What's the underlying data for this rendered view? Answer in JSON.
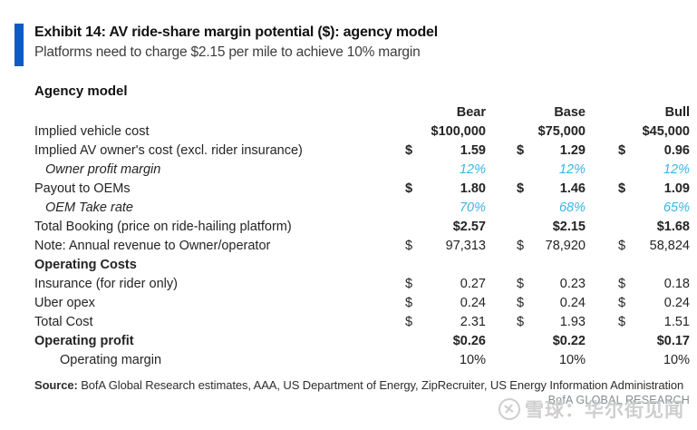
{
  "header": {
    "title": "Exhibit 14: AV ride-share margin potential ($): agency model",
    "subtitle": "Platforms need to charge $2.15 per mile to achieve 10% margin"
  },
  "table": {
    "section_title": "Agency model",
    "columns": [
      "Bear",
      "Base",
      "Bull"
    ],
    "rows": [
      {
        "label": "Implied vehicle cost",
        "value_style": "vbold",
        "cells": [
          {
            "sym": "",
            "val": "$100,000"
          },
          {
            "sym": "",
            "val": "$75,000"
          },
          {
            "sym": "",
            "val": "$45,000"
          }
        ]
      },
      {
        "label": "Implied AV owner's cost (excl. rider insurance)",
        "value_style": "vbold",
        "cells": [
          {
            "sym": "$",
            "val": "1.59"
          },
          {
            "sym": "$",
            "val": "1.29"
          },
          {
            "sym": "$",
            "val": "0.96"
          }
        ]
      },
      {
        "label": "Owner profit margin",
        "label_style": "italic",
        "indent": 1,
        "value_style": "vblue",
        "cells": [
          {
            "sym": "",
            "val": "12%"
          },
          {
            "sym": "",
            "val": "12%"
          },
          {
            "sym": "",
            "val": "12%"
          }
        ]
      },
      {
        "label": "Payout to OEMs",
        "value_style": "vbold",
        "cells": [
          {
            "sym": "$",
            "val": "1.80"
          },
          {
            "sym": "$",
            "val": "1.46"
          },
          {
            "sym": "$",
            "val": "1.09"
          }
        ]
      },
      {
        "label": "OEM Take rate",
        "label_style": "italic",
        "indent": 1,
        "value_style": "vblue",
        "cells": [
          {
            "sym": "",
            "val": "70%"
          },
          {
            "sym": "",
            "val": "68%"
          },
          {
            "sym": "",
            "val": "65%"
          }
        ]
      },
      {
        "label": "Total Booking (price on ride-hailing platform)",
        "value_style": "vbold",
        "cells": [
          {
            "sym": "",
            "val": "$2.57"
          },
          {
            "sym": "",
            "val": "$2.15"
          },
          {
            "sym": "",
            "val": "$1.68"
          }
        ]
      },
      {
        "label": "Note:  Annual revenue to Owner/operator",
        "cells": [
          {
            "sym": "$",
            "val": "97,313"
          },
          {
            "sym": "$",
            "val": "78,920"
          },
          {
            "sym": "$",
            "val": "58,824"
          }
        ]
      },
      {
        "label": "Operating Costs",
        "label_style": "bold",
        "cells": [
          {
            "sym": "",
            "val": ""
          },
          {
            "sym": "",
            "val": ""
          },
          {
            "sym": "",
            "val": ""
          }
        ]
      },
      {
        "label": "Insurance (for rider only)",
        "cells": [
          {
            "sym": "$",
            "val": "0.27"
          },
          {
            "sym": "$",
            "val": "0.23"
          },
          {
            "sym": "$",
            "val": "0.18"
          }
        ]
      },
      {
        "label": "Uber opex",
        "cells": [
          {
            "sym": "$",
            "val": "0.24"
          },
          {
            "sym": "$",
            "val": "0.24"
          },
          {
            "sym": "$",
            "val": "0.24"
          }
        ]
      },
      {
        "label": "Total Cost",
        "cells": [
          {
            "sym": "$",
            "val": "2.31"
          },
          {
            "sym": "$",
            "val": "1.93"
          },
          {
            "sym": "$",
            "val": "1.51"
          }
        ]
      },
      {
        "label": "Operating profit",
        "label_style": "bold",
        "value_style": "vbold",
        "cells": [
          {
            "sym": "",
            "val": "$0.26"
          },
          {
            "sym": "",
            "val": "$0.22"
          },
          {
            "sym": "",
            "val": "$0.17"
          }
        ]
      },
      {
        "label": "Operating margin",
        "indent": 2,
        "cells": [
          {
            "sym": "",
            "val": "10%"
          },
          {
            "sym": "",
            "val": "10%"
          },
          {
            "sym": "",
            "val": "10%"
          }
        ]
      }
    ]
  },
  "footer": {
    "source_label": "Source:",
    "source_text": " BofA Global Research estimates, AAA, US Department of Energy, ZipRecruiter, US Energy Information Administration",
    "brand": "BofA GLOBAL RESEARCH",
    "watermark_logo": "✕",
    "watermark_text": "雪球：华尔街见闻"
  },
  "colors": {
    "accent_blue": "#0b5cc4",
    "highlight_blue": "#3ab4e6",
    "brand_gray": "#848d92"
  }
}
